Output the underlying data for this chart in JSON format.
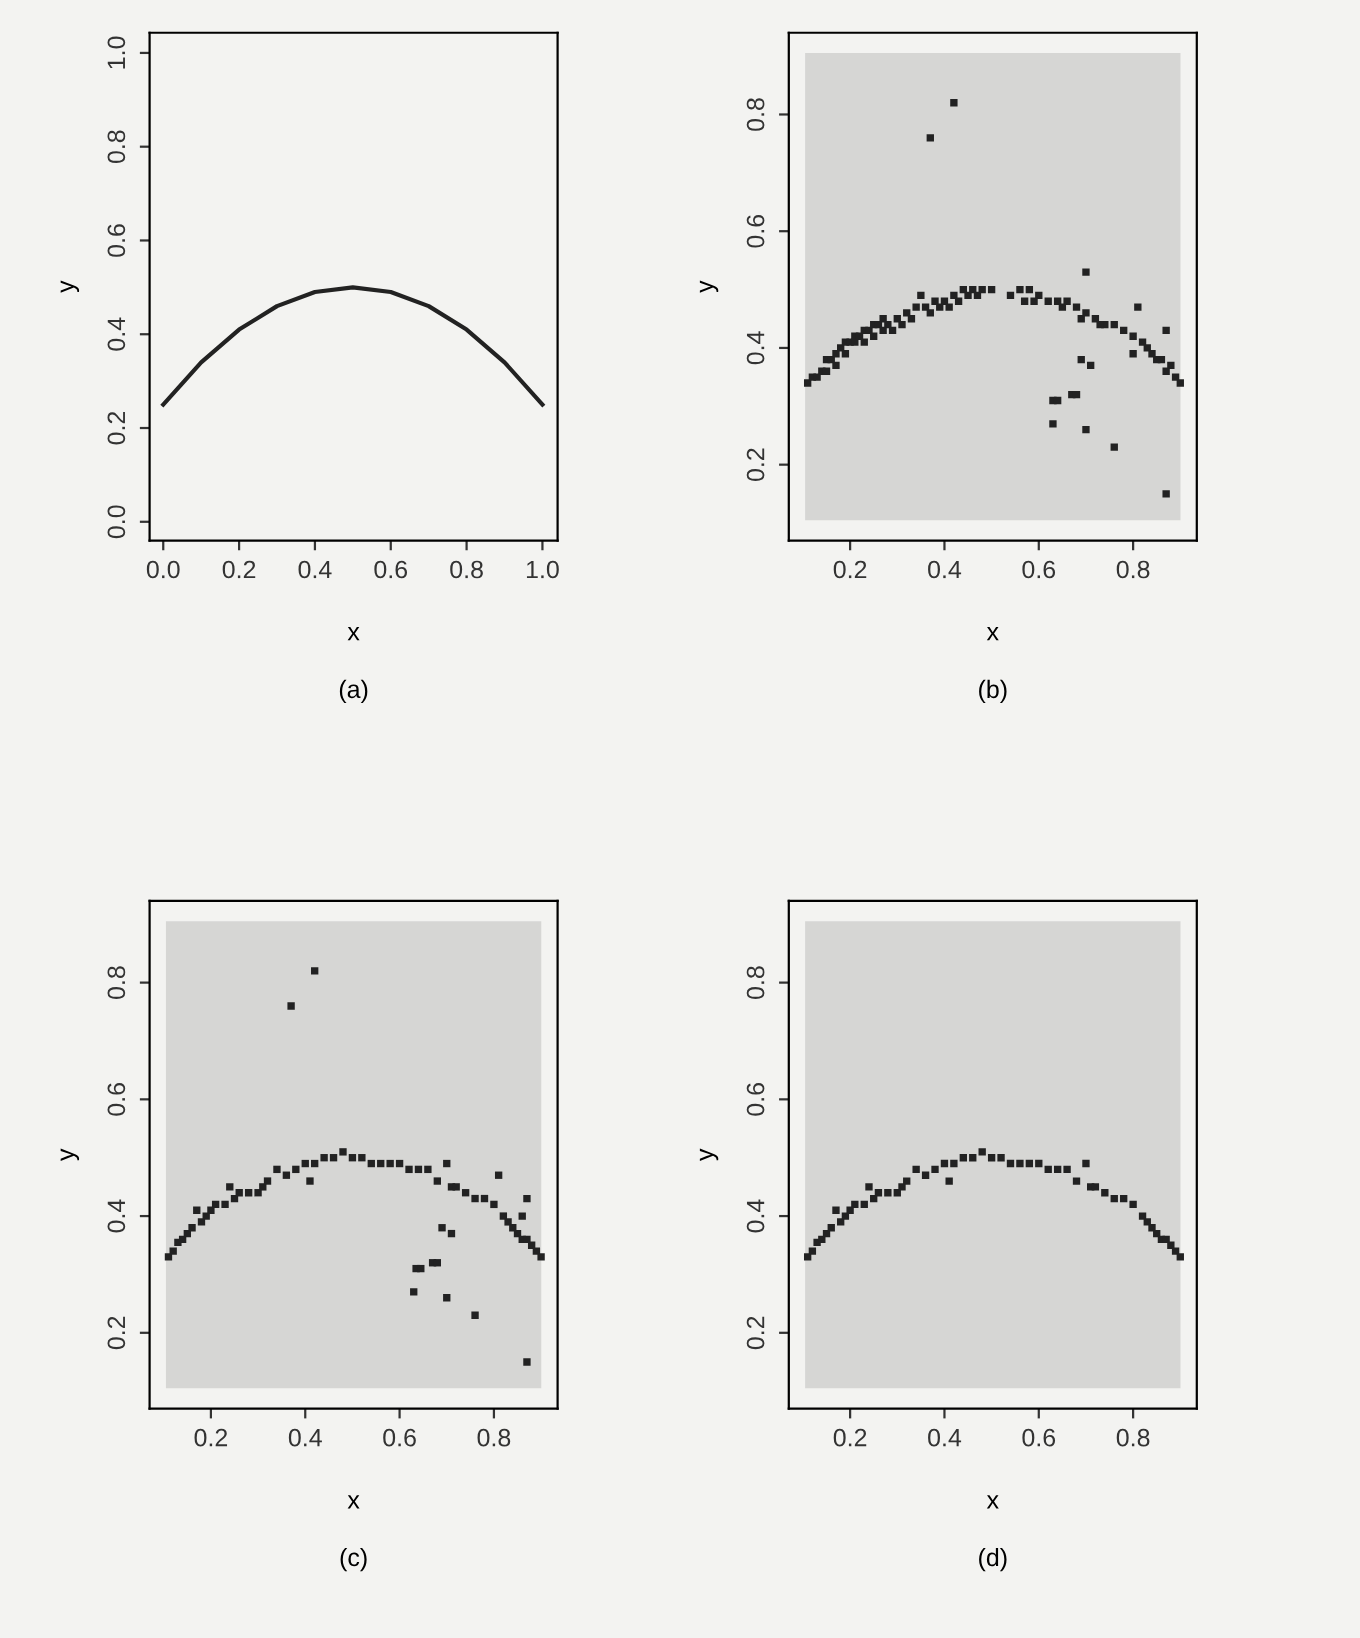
{
  "chart_data": [
    {
      "type": "line",
      "xlabel": "x",
      "ylabel": "y",
      "annotations": [
        "(a)"
      ],
      "xlim": [
        -0.036,
        1.04
      ],
      "ylim": [
        -0.04,
        1.043
      ],
      "xticks": [
        {
          "value": 0,
          "label": "0.0"
        },
        0.2,
        0.4,
        0.6,
        0.8,
        {
          "value": 1,
          "label": "1.0"
        }
      ],
      "yticks": [
        {
          "value": 0,
          "label": "0.0"
        },
        0.2,
        0.4,
        0.6,
        0.8,
        {
          "value": 1,
          "label": "1.0"
        }
      ],
      "grid": false,
      "marker": "none",
      "line_style": "solid",
      "series": [
        {
          "color": "#222222",
          "x": [
            0,
            0.1,
            0.2,
            0.3,
            0.4,
            0.5,
            0.6,
            0.7,
            0.8,
            0.9,
            1.0
          ],
          "values": [
            0.25,
            0.34,
            0.41,
            0.46,
            0.49,
            0.5,
            0.49,
            0.46,
            0.41,
            0.34,
            0.25
          ]
        }
      ]
    },
    {
      "type": "scatter",
      "xlabel": "x",
      "ylabel": "y",
      "annotations": [
        "(b)"
      ],
      "xlim": [
        0.07,
        0.935
      ],
      "ylim": [
        0.07,
        0.94
      ],
      "xticks": [
        0.2,
        0.4,
        0.6,
        0.8
      ],
      "yticks": [
        0.2,
        0.4,
        0.6,
        0.8
      ],
      "grid": false,
      "marker": "square",
      "series": [
        {
          "color": "#222222",
          "x": [
            0.11,
            0.12,
            0.13,
            0.14,
            0.15,
            0.16,
            0.17,
            0.18,
            0.19,
            0.2,
            0.21,
            0.22,
            0.23,
            0.24,
            0.25,
            0.26,
            0.27,
            0.28,
            0.3,
            0.32,
            0.34,
            0.35,
            0.36,
            0.38,
            0.4,
            0.42,
            0.44,
            0.46,
            0.48,
            0.5,
            0.15,
            0.17,
            0.19,
            0.21,
            0.23,
            0.25,
            0.27,
            0.29,
            0.31,
            0.33,
            0.37,
            0.39,
            0.41,
            0.43,
            0.45,
            0.47,
            0.54,
            0.56,
            0.58,
            0.6,
            0.62,
            0.64,
            0.66,
            0.68,
            0.7,
            0.72,
            0.74,
            0.76,
            0.78,
            0.8,
            0.82,
            0.84,
            0.86,
            0.88,
            0.9,
            0.57,
            0.59,
            0.65,
            0.69,
            0.73,
            0.83,
            0.85,
            0.87,
            0.89,
            0.37,
            0.42,
            0.7,
            0.81,
            0.87,
            0.69,
            0.71,
            0.63,
            0.64,
            0.67,
            0.68,
            0.63,
            0.7,
            0.76,
            0.87,
            0.8
          ],
          "values": [
            0.34,
            0.35,
            0.35,
            0.36,
            0.38,
            0.38,
            0.39,
            0.4,
            0.41,
            0.41,
            0.42,
            0.42,
            0.43,
            0.43,
            0.44,
            0.44,
            0.45,
            0.44,
            0.45,
            0.46,
            0.47,
            0.49,
            0.47,
            0.48,
            0.48,
            0.49,
            0.5,
            0.5,
            0.5,
            0.5,
            0.36,
            0.37,
            0.39,
            0.41,
            0.41,
            0.42,
            0.43,
            0.43,
            0.44,
            0.45,
            0.46,
            0.47,
            0.47,
            0.48,
            0.49,
            0.49,
            0.49,
            0.5,
            0.5,
            0.49,
            0.48,
            0.48,
            0.48,
            0.47,
            0.46,
            0.45,
            0.44,
            0.44,
            0.43,
            0.42,
            0.41,
            0.39,
            0.38,
            0.37,
            0.34,
            0.48,
            0.48,
            0.47,
            0.45,
            0.44,
            0.4,
            0.38,
            0.36,
            0.35,
            0.76,
            0.82,
            0.53,
            0.47,
            0.43,
            0.38,
            0.37,
            0.31,
            0.31,
            0.32,
            0.32,
            0.27,
            0.26,
            0.23,
            0.15,
            0.39
          ]
        }
      ]
    },
    {
      "type": "scatter",
      "xlabel": "x",
      "ylabel": "y",
      "annotations": [
        "(c)"
      ],
      "xlim": [
        0.07,
        0.935
      ],
      "ylim": [
        0.07,
        0.94
      ],
      "xticks": [
        0.2,
        0.4,
        0.6,
        0.8
      ],
      "yticks": [
        0.2,
        0.4,
        0.6,
        0.8
      ],
      "grid": false,
      "marker": "square",
      "series": [
        {
          "color": "#222222",
          "x": [
            0.11,
            0.12,
            0.13,
            0.14,
            0.15,
            0.16,
            0.17,
            0.18,
            0.19,
            0.2,
            0.21,
            0.23,
            0.24,
            0.25,
            0.26,
            0.28,
            0.3,
            0.31,
            0.32,
            0.34,
            0.36,
            0.38,
            0.4,
            0.42,
            0.44,
            0.46,
            0.48,
            0.5,
            0.52,
            0.54,
            0.56,
            0.58,
            0.6,
            0.62,
            0.64,
            0.66,
            0.68,
            0.7,
            0.71,
            0.72,
            0.74,
            0.76,
            0.78,
            0.8,
            0.82,
            0.83,
            0.84,
            0.85,
            0.86,
            0.87,
            0.88,
            0.89,
            0.9,
            0.37,
            0.42,
            0.41,
            0.63,
            0.635,
            0.645,
            0.67,
            0.68,
            0.69,
            0.71,
            0.7,
            0.76,
            0.81,
            0.87,
            0.86,
            0.87
          ],
          "values": [
            0.33,
            0.34,
            0.355,
            0.36,
            0.37,
            0.38,
            0.41,
            0.39,
            0.4,
            0.41,
            0.42,
            0.42,
            0.45,
            0.43,
            0.44,
            0.44,
            0.44,
            0.45,
            0.46,
            0.48,
            0.47,
            0.48,
            0.49,
            0.49,
            0.5,
            0.5,
            0.51,
            0.5,
            0.5,
            0.49,
            0.49,
            0.49,
            0.49,
            0.48,
            0.48,
            0.48,
            0.46,
            0.49,
            0.45,
            0.45,
            0.44,
            0.43,
            0.43,
            0.42,
            0.4,
            0.39,
            0.38,
            0.37,
            0.36,
            0.36,
            0.35,
            0.34,
            0.33,
            0.76,
            0.82,
            0.46,
            0.27,
            0.31,
            0.31,
            0.32,
            0.32,
            0.38,
            0.37,
            0.26,
            0.23,
            0.47,
            0.43,
            0.4,
            0.15
          ]
        }
      ]
    },
    {
      "type": "scatter",
      "xlabel": "x",
      "ylabel": "y",
      "annotations": [
        "(d)"
      ],
      "xlim": [
        0.07,
        0.935
      ],
      "ylim": [
        0.07,
        0.94
      ],
      "xticks": [
        0.2,
        0.4,
        0.6,
        0.8
      ],
      "yticks": [
        0.2,
        0.4,
        0.6,
        0.8
      ],
      "grid": false,
      "marker": "square",
      "series": [
        {
          "color": "#222222",
          "x": [
            0.11,
            0.12,
            0.13,
            0.14,
            0.15,
            0.16,
            0.17,
            0.18,
            0.19,
            0.2,
            0.21,
            0.23,
            0.24,
            0.25,
            0.26,
            0.28,
            0.3,
            0.31,
            0.32,
            0.34,
            0.36,
            0.38,
            0.4,
            0.42,
            0.44,
            0.46,
            0.48,
            0.5,
            0.52,
            0.54,
            0.56,
            0.58,
            0.6,
            0.62,
            0.64,
            0.66,
            0.68,
            0.7,
            0.71,
            0.72,
            0.74,
            0.76,
            0.78,
            0.8,
            0.82,
            0.83,
            0.84,
            0.85,
            0.86,
            0.87,
            0.88,
            0.89,
            0.9,
            0.41
          ],
          "values": [
            0.33,
            0.34,
            0.355,
            0.36,
            0.37,
            0.38,
            0.41,
            0.39,
            0.4,
            0.41,
            0.42,
            0.42,
            0.45,
            0.43,
            0.44,
            0.44,
            0.44,
            0.45,
            0.46,
            0.48,
            0.47,
            0.48,
            0.49,
            0.49,
            0.5,
            0.5,
            0.51,
            0.5,
            0.5,
            0.49,
            0.49,
            0.49,
            0.49,
            0.48,
            0.48,
            0.48,
            0.46,
            0.49,
            0.45,
            0.45,
            0.44,
            0.43,
            0.43,
            0.42,
            0.4,
            0.39,
            0.38,
            0.37,
            0.36,
            0.36,
            0.35,
            0.34,
            0.33,
            0.46
          ]
        }
      ]
    }
  ]
}
